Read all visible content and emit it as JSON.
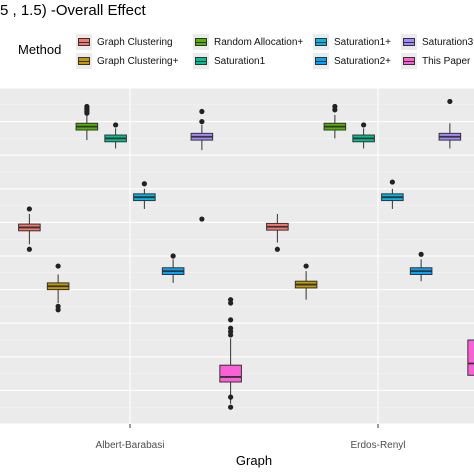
{
  "title": "5 , 1.5) -Overall Effect",
  "legend": {
    "title": "Method",
    "items": [
      {
        "label": "Graph Clustering",
        "color": "#F8766D"
      },
      {
        "label": "Graph Clustering+",
        "color": "#C49A00"
      },
      {
        "label": "Random Allocation+",
        "color": "#53B400"
      },
      {
        "label": "Saturation1",
        "color": "#00C094"
      },
      {
        "label": "Saturation1+",
        "color": "#00B6EB"
      },
      {
        "label": "Saturation2+",
        "color": "#06A4FF"
      },
      {
        "label": "Saturation3",
        "color": "#A58AFF"
      },
      {
        "label": "This Paper",
        "color": "#FB61D7"
      }
    ]
  },
  "chart_data": {
    "type": "box",
    "xlabel": "Graph",
    "ylabel": "",
    "categories": [
      "Albert-Barabasi",
      "Erdos-Renyl"
    ],
    "ylim": [
      0,
      1
    ],
    "grid": true,
    "legend_position": "top",
    "series": [
      {
        "name": "Graph Clustering",
        "color": "#F8766D",
        "stats": [
          {
            "q1": 0.575,
            "median": 0.585,
            "q3": 0.595,
            "lower": 0.535,
            "upper": 0.625,
            "outliers": [
              0.64,
              0.52
            ]
          },
          {
            "q1": 0.577,
            "median": 0.587,
            "q3": 0.597,
            "lower": 0.54,
            "upper": 0.625,
            "outliers": [
              0.52
            ]
          }
        ]
      },
      {
        "name": "Graph Clustering+",
        "color": "#C49A00",
        "stats": [
          {
            "q1": 0.4,
            "median": 0.41,
            "q3": 0.42,
            "lower": 0.36,
            "upper": 0.445,
            "outliers": [
              0.47,
              0.35,
              0.34
            ]
          },
          {
            "q1": 0.405,
            "median": 0.415,
            "q3": 0.425,
            "lower": 0.37,
            "upper": 0.455,
            "outliers": [
              0.47
            ]
          }
        ]
      },
      {
        "name": "Random Allocation+",
        "color": "#53B400",
        "stats": [
          {
            "q1": 0.875,
            "median": 0.885,
            "q3": 0.895,
            "lower": 0.845,
            "upper": 0.92,
            "outliers": [
              0.925,
              0.93,
              0.935,
              0.94,
              0.945
            ]
          },
          {
            "q1": 0.875,
            "median": 0.885,
            "q3": 0.895,
            "lower": 0.85,
            "upper": 0.92,
            "outliers": [
              0.935,
              0.945
            ]
          }
        ]
      },
      {
        "name": "Saturation1",
        "color": "#00C094",
        "stats": [
          {
            "q1": 0.84,
            "median": 0.85,
            "q3": 0.86,
            "lower": 0.82,
            "upper": 0.88,
            "outliers": [
              0.89
            ]
          },
          {
            "q1": 0.84,
            "median": 0.85,
            "q3": 0.86,
            "lower": 0.82,
            "upper": 0.88,
            "outliers": [
              0.89
            ]
          }
        ]
      },
      {
        "name": "Saturation1+",
        "color": "#00B6EB",
        "stats": [
          {
            "q1": 0.665,
            "median": 0.675,
            "q3": 0.685,
            "lower": 0.64,
            "upper": 0.7,
            "outliers": [
              0.715
            ]
          },
          {
            "q1": 0.665,
            "median": 0.675,
            "q3": 0.685,
            "lower": 0.64,
            "upper": 0.7,
            "outliers": [
              0.72
            ]
          }
        ]
      },
      {
        "name": "Saturation2+",
        "color": "#06A4FF",
        "stats": [
          {
            "q1": 0.445,
            "median": 0.455,
            "q3": 0.465,
            "lower": 0.42,
            "upper": 0.49,
            "outliers": [
              0.5
            ]
          },
          {
            "q1": 0.445,
            "median": 0.455,
            "q3": 0.465,
            "lower": 0.425,
            "upper": 0.49,
            "outliers": [
              0.505
            ]
          }
        ]
      },
      {
        "name": "Saturation3",
        "color": "#A58AFF",
        "stats": [
          {
            "q1": 0.845,
            "median": 0.855,
            "q3": 0.865,
            "lower": 0.815,
            "upper": 0.89,
            "outliers": [
              0.9,
              0.93,
              0.61
            ]
          },
          {
            "q1": 0.845,
            "median": 0.855,
            "q3": 0.865,
            "lower": 0.82,
            "upper": 0.895,
            "outliers": [
              0.96
            ]
          }
        ]
      },
      {
        "name": "This Paper",
        "color": "#FB61D7",
        "stats": [
          {
            "q1": 0.125,
            "median": 0.14,
            "q3": 0.175,
            "lower": 0.06,
            "upper": 0.255,
            "outliers": [
              0.265,
              0.275,
              0.285,
              0.31,
              0.36,
              0.37,
              0.08,
              0.05
            ]
          },
          {
            "q1": 0.145,
            "median": 0.18,
            "q3": 0.25,
            "lower": 0.05,
            "upper": 0.345,
            "outliers": [
              0.37,
              0.4
            ]
          }
        ]
      }
    ]
  }
}
